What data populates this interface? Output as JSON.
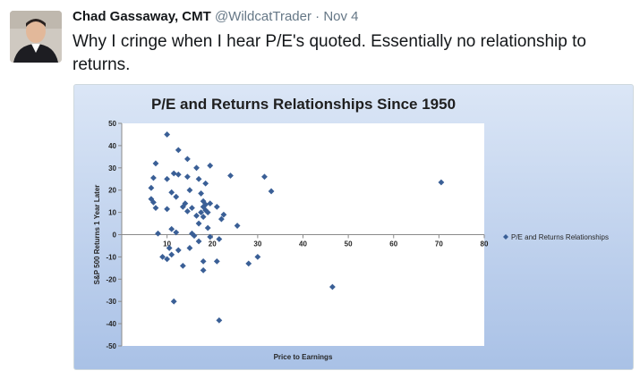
{
  "tweet": {
    "author_name": "Chad Gassaway, CMT",
    "handle": "@WildcatTrader",
    "separator": "·",
    "date": "Nov 4",
    "text": "Why I cringe when I hear P/E's quoted.  Essentially no relationship to returns.",
    "avatar_icon": "user-avatar-icon"
  },
  "colors": {
    "marker": "#3a5f96",
    "plot_bg": "#ffffff",
    "frame_bg_top": "#dbe6f6",
    "frame_bg_bottom": "#a9c1e6"
  },
  "chart_data": {
    "type": "scatter",
    "title": "P/E and Returns Relationships Since 1950",
    "xlabel": "Price to Earnings",
    "ylabel": "S&P 500 Returns 1 Year Later",
    "xlim": [
      0,
      80
    ],
    "ylim": [
      -50,
      50
    ],
    "xticks": [
      "0",
      "10",
      "20",
      "30",
      "40",
      "50",
      "60",
      "70",
      "80"
    ],
    "yticks": [
      "50",
      "40",
      "30",
      "20",
      "10",
      "0",
      "-10",
      "-20",
      "-30",
      "-40",
      "-50"
    ],
    "grid": false,
    "legend_position": "right",
    "series": [
      {
        "name": "P/E and Returns Relationships",
        "points": [
          [
            10,
            45
          ],
          [
            12.5,
            38
          ],
          [
            14.5,
            34
          ],
          [
            7.5,
            32
          ],
          [
            16.5,
            30
          ],
          [
            19.5,
            31
          ],
          [
            11.5,
            27.5
          ],
          [
            12.5,
            27
          ],
          [
            14.5,
            26
          ],
          [
            24,
            26.5
          ],
          [
            31.5,
            26
          ],
          [
            7,
            25.5
          ],
          [
            10,
            25
          ],
          [
            17,
            25
          ],
          [
            18.5,
            23
          ],
          [
            70.5,
            23.5
          ],
          [
            6.5,
            21
          ],
          [
            11,
            19
          ],
          [
            15,
            20
          ],
          [
            33,
            19.5
          ],
          [
            17.5,
            18.5
          ],
          [
            12,
            17
          ],
          [
            6.5,
            16
          ],
          [
            7,
            14.5
          ],
          [
            18,
            15
          ],
          [
            14,
            14
          ],
          [
            18.5,
            13.5
          ],
          [
            19.5,
            14
          ],
          [
            13.5,
            12.5
          ],
          [
            7.5,
            12
          ],
          [
            15.5,
            12
          ],
          [
            18,
            12.5
          ],
          [
            10,
            11.5
          ],
          [
            18.5,
            11
          ],
          [
            21,
            12.5
          ],
          [
            14.5,
            10.5
          ],
          [
            17.5,
            10
          ],
          [
            19,
            10
          ],
          [
            22.5,
            9
          ],
          [
            16.5,
            8.5
          ],
          [
            18,
            8
          ],
          [
            22,
            7
          ],
          [
            17,
            5
          ],
          [
            25.5,
            4
          ],
          [
            19,
            3
          ],
          [
            11,
            2.5
          ],
          [
            12,
            1
          ],
          [
            15.5,
            0.5
          ],
          [
            16,
            -0.5
          ],
          [
            8,
            0.5
          ],
          [
            19.5,
            -1
          ],
          [
            21.5,
            -2
          ],
          [
            17,
            -3
          ],
          [
            10.5,
            -6
          ],
          [
            15,
            -6
          ],
          [
            12.5,
            -7
          ],
          [
            11,
            -9
          ],
          [
            9,
            -10
          ],
          [
            30,
            -10
          ],
          [
            10,
            -11
          ],
          [
            21,
            -12
          ],
          [
            18,
            -12
          ],
          [
            28,
            -13
          ],
          [
            13.5,
            -14
          ],
          [
            18,
            -16
          ],
          [
            46.5,
            -23.5
          ],
          [
            11.5,
            -30
          ],
          [
            21.5,
            -38.5
          ]
        ]
      }
    ]
  }
}
